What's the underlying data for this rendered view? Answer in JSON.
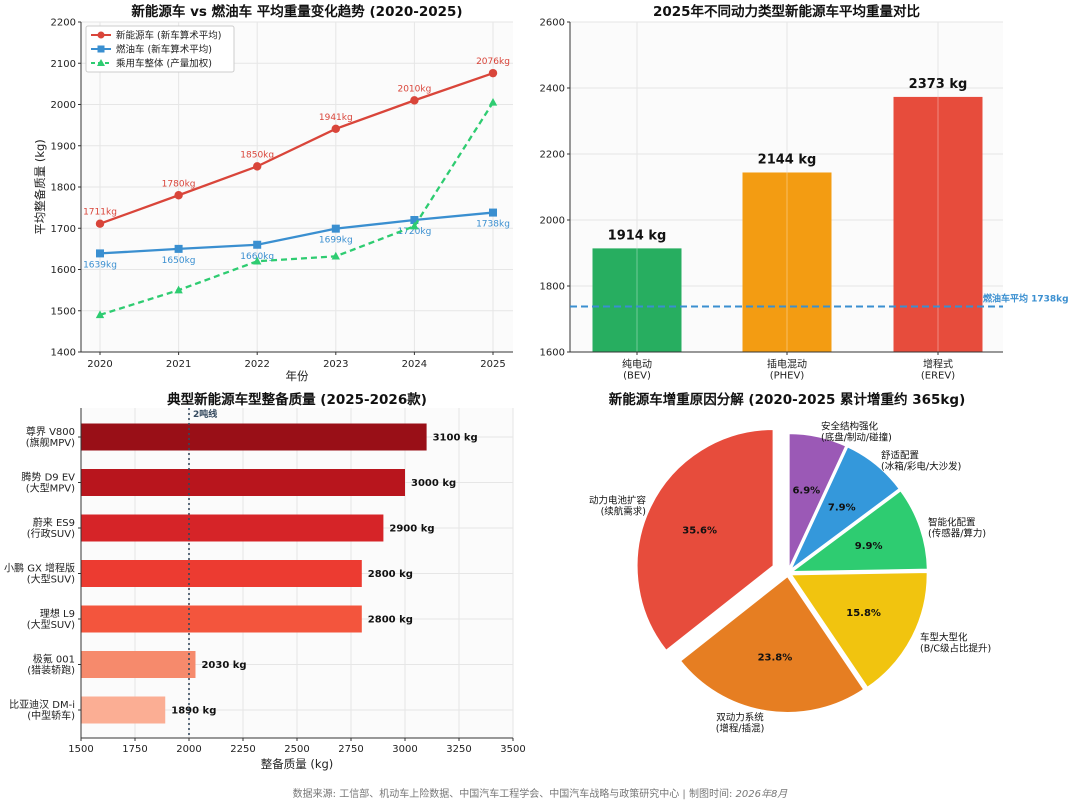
{
  "footer": {
    "source": "数据来源: 工信部、机动车上险数据、中国汽车工程学会、中国汽车战略与政策研究中心 | 制图时间: ",
    "date": "2026年8月"
  },
  "chart_data": [
    {
      "type": "line",
      "title": "新能源车 vs 燃油车 平均重量变化趋势 (2020-2025)",
      "xlabel": "年份",
      "ylabel": "平均整备质量 (kg)",
      "x": [
        2020,
        2021,
        2022,
        2023,
        2024,
        2025
      ],
      "ylim": [
        1400,
        2200
      ],
      "yticks": [
        1400,
        1500,
        1600,
        1700,
        1800,
        1900,
        2000,
        2100,
        2200
      ],
      "grid": true,
      "legend_position": "top-left",
      "series": [
        {
          "name": "新能源车 (新车算术平均)",
          "values": [
            1711,
            1780,
            1850,
            1941,
            2010,
            2076
          ],
          "labels": [
            "1711kg",
            "1780kg",
            "1850kg",
            "1941kg",
            "2010kg",
            "2076kg"
          ],
          "color": "#d9453a",
          "marker": "circle",
          "dash": "solid"
        },
        {
          "name": "燃油车 (新车算术平均)",
          "values": [
            1639,
            1650,
            1660,
            1699,
            1720,
            1738
          ],
          "labels": [
            "1639kg",
            "1650kg",
            "1660kg",
            "1699kg",
            "1720kg",
            "1738kg"
          ],
          "color": "#3a8fd0",
          "marker": "square",
          "dash": "solid"
        },
        {
          "name": "乘用车整体 (产量加权)",
          "values": [
            1490,
            1550,
            1620,
            1632,
            1705,
            2005
          ],
          "color": "#2ecc71",
          "marker": "triangle",
          "dash": "dashed"
        }
      ]
    },
    {
      "type": "bar",
      "title": "2025年不同动力类型新能源车平均重量对比",
      "ylabel": "平均整备质量 (kg)",
      "categories": [
        "纯电动\n(BEV)",
        "插电混动\n(PHEV)",
        "增程式\n(EREV)"
      ],
      "values": [
        1914,
        2144,
        2373
      ],
      "value_labels": [
        "1914 kg",
        "2144 kg",
        "2373 kg"
      ],
      "colors": [
        "#27ae60",
        "#f39c12",
        "#e74c3c"
      ],
      "ylim": [
        1600,
        2600
      ],
      "yticks": [
        1600,
        1800,
        2000,
        2200,
        2400,
        2600
      ],
      "grid": true,
      "reference_line": {
        "value": 1738,
        "label": "燃油车平均 1738kg",
        "color": "#3a8fd0"
      }
    },
    {
      "type": "bar",
      "orientation": "horizontal",
      "title": "典型新能源车型整备质量 (2025-2026款)",
      "xlabel": "整备质量 (kg)",
      "categories": [
        "尊界 V800\n(旗舰MPV)",
        "腾势 D9 EV\n(大型MPV)",
        "蔚来 ES9\n(行政SUV)",
        "小鹏 GX 增程版\n(大型SUV)",
        "理想 L9\n(大型SUV)",
        "极氪 001\n(猎装轿跑)",
        "比亚迪汉 DM-i\n(中型轿车)"
      ],
      "values": [
        3100,
        3000,
        2900,
        2800,
        2800,
        2030,
        1890
      ],
      "value_labels": [
        "3100 kg",
        "3000 kg",
        "2900 kg",
        "2800 kg",
        "2800 kg",
        "2030 kg",
        "1890 kg"
      ],
      "colors": [
        "#990f17",
        "#b8151d",
        "#d62428",
        "#ec3b31",
        "#f3553d",
        "#f68a6c",
        "#fbae94"
      ],
      "xlim": [
        1500,
        3500
      ],
      "xticks": [
        1500,
        1750,
        2000,
        2250,
        2500,
        2750,
        3000,
        3250,
        3500
      ],
      "grid": true,
      "reference_line": {
        "value": 2000,
        "label": "2吨线",
        "color": "#34495e"
      }
    },
    {
      "type": "pie",
      "title": "新能源车增重原因分解 (2020-2025 累计增重约 365kg)",
      "slices": [
        {
          "label": "安全结构强化\n(底盘/制动/碰撞)",
          "value": 6.9,
          "pct_label": "6.9%",
          "color": "#9b59b6"
        },
        {
          "label": "舒适配置\n(冰箱/彩电/大沙发)",
          "value": 7.9,
          "pct_label": "7.9%",
          "color": "#3498db"
        },
        {
          "label": "智能化配置\n(传感器/算力)",
          "value": 9.9,
          "pct_label": "9.9%",
          "color": "#2ecc71"
        },
        {
          "label": "车型大型化\n(B/C级占比提升)",
          "value": 15.8,
          "pct_label": "15.8%",
          "color": "#f1c40f"
        },
        {
          "label": "双动力系统\n(增程/插混)",
          "value": 23.8,
          "pct_label": "23.8%",
          "color": "#e67e22"
        },
        {
          "label": "动力电池扩容\n(续航需求)",
          "value": 35.6,
          "pct_label": "35.6%",
          "color": "#e74c3c",
          "exploded": true
        }
      ]
    }
  ]
}
